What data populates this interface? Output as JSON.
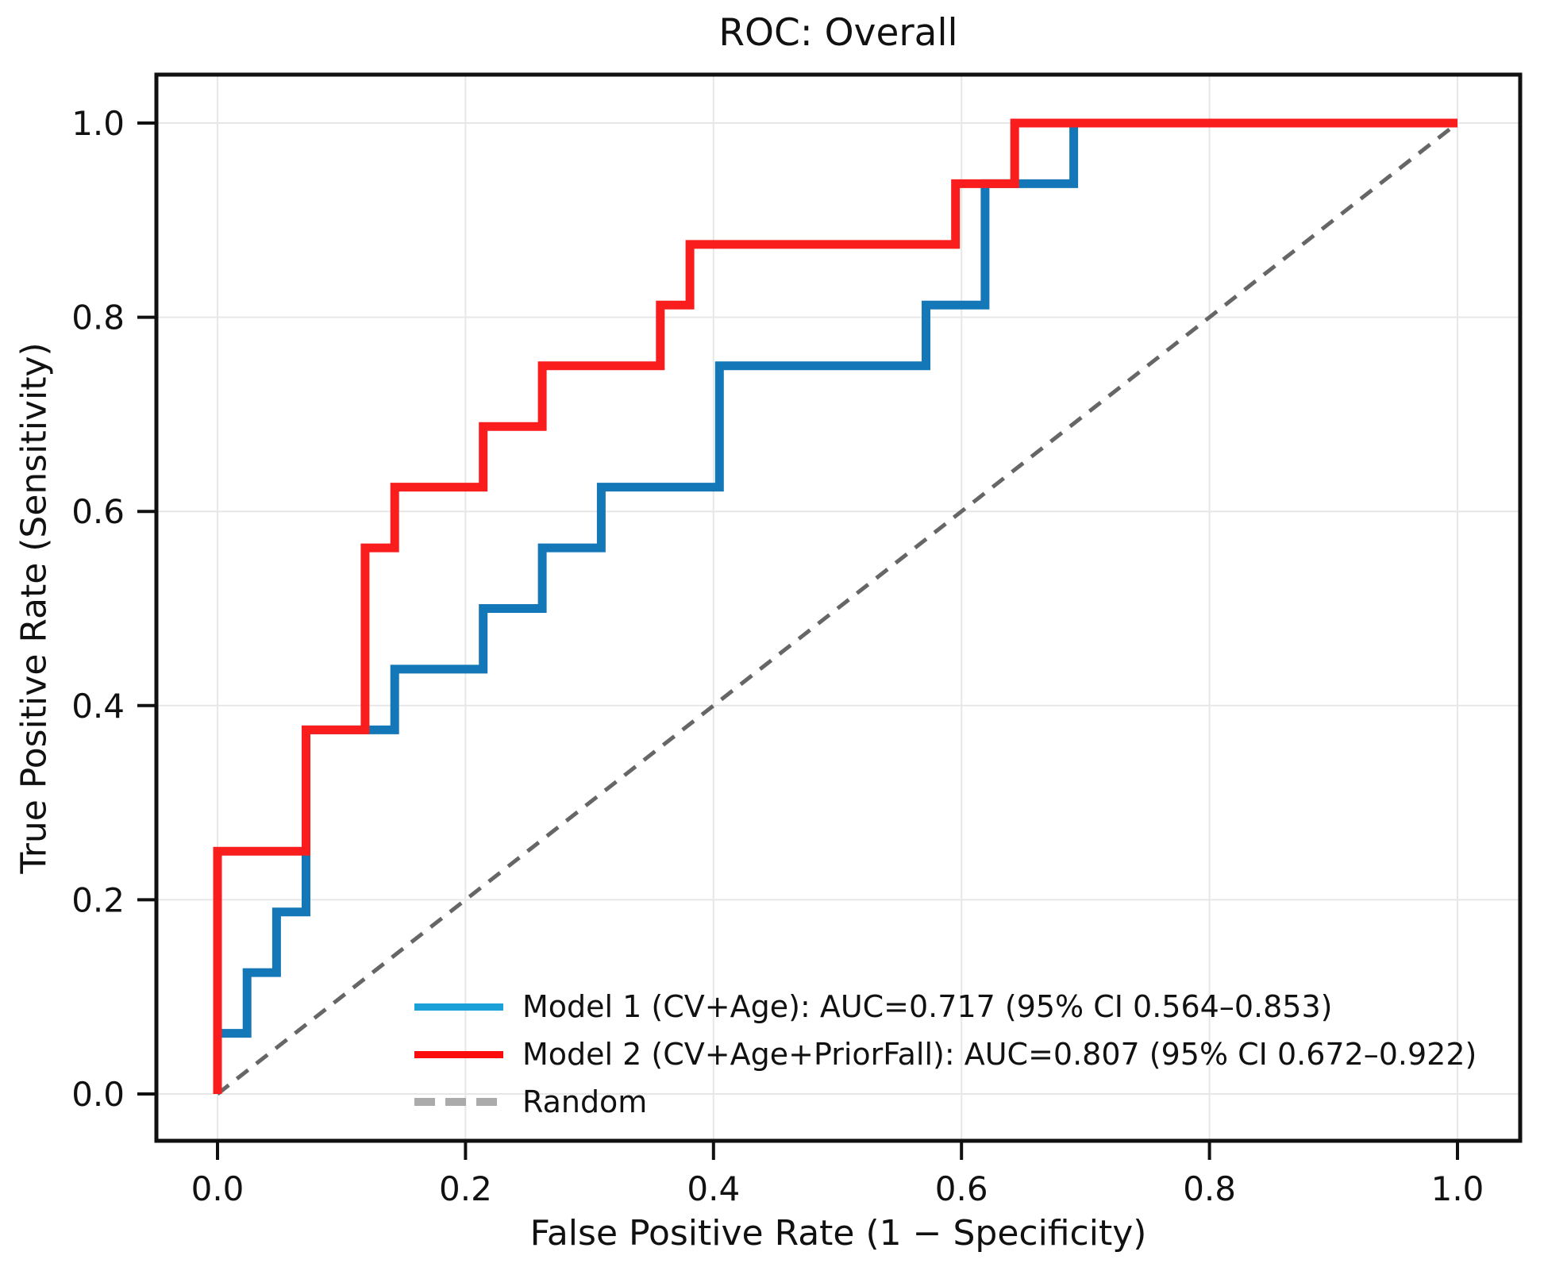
{
  "figure": {
    "background": "#ffffff",
    "text_color": "#111111",
    "grid_color": "#e7e7e7",
    "spine_color": "#111111"
  },
  "chart_data": {
    "type": "line",
    "subtype": "roc_step_curves",
    "title": "ROC: Overall",
    "xlabel": "False Positive Rate (1 − Specificity)",
    "ylabel": "True Positive Rate (Sensitivity)",
    "xlim": [
      0,
      1
    ],
    "ylim": [
      0,
      1
    ],
    "axis_margin_fraction": 0.045,
    "grid": true,
    "legend_position": "lower center, inside axes, no frame",
    "x_ticks": [
      0.0,
      0.2,
      0.4,
      0.6,
      0.8,
      1.0
    ],
    "x_tick_labels": [
      "0.0",
      "0.2",
      "0.4",
      "0.6",
      "0.8",
      "1.0"
    ],
    "y_ticks": [
      0.0,
      0.2,
      0.4,
      0.6,
      0.8,
      1.0
    ],
    "y_tick_labels": [
      "0.0",
      "0.2",
      "0.4",
      "0.6",
      "0.8",
      "1.0"
    ],
    "series": [
      {
        "name": "Model 1",
        "label": "Model 1 (CV+Age): AUC=0.717 (95% CI 0.564–0.853)",
        "auc": 0.717,
        "ci_95": "0.564–0.853",
        "color": "#1478b8",
        "legend_color": "#1ba1d7",
        "line_style": "solid",
        "line_width": 11,
        "z": 2,
        "points": [
          [
            0,
            0
          ],
          [
            0,
            0.0625
          ],
          [
            0.0238,
            0.0625
          ],
          [
            0.0238,
            0.125
          ],
          [
            0.0476,
            0.125
          ],
          [
            0.0476,
            0.1875
          ],
          [
            0.0714,
            0.1875
          ],
          [
            0.0714,
            0.375
          ],
          [
            0.1429,
            0.375
          ],
          [
            0.1429,
            0.4375
          ],
          [
            0.2143,
            0.4375
          ],
          [
            0.2143,
            0.5
          ],
          [
            0.2619,
            0.5
          ],
          [
            0.2619,
            0.5625
          ],
          [
            0.3095,
            0.5625
          ],
          [
            0.3095,
            0.625
          ],
          [
            0.4048,
            0.625
          ],
          [
            0.4048,
            0.75
          ],
          [
            0.5714,
            0.75
          ],
          [
            0.5714,
            0.8125
          ],
          [
            0.619,
            0.8125
          ],
          [
            0.619,
            0.9375
          ],
          [
            0.6905,
            0.9375
          ],
          [
            0.6905,
            1
          ],
          [
            1,
            1
          ]
        ]
      },
      {
        "name": "Model 2",
        "label": "Model 2 (CV+Age+PriorFall): AUC=0.807 (95% CI 0.672–0.922)",
        "auc": 0.807,
        "ci_95": "0.672–0.922",
        "color": "#f91d1d",
        "legend_color": "#fb0d0d",
        "line_style": "solid",
        "line_width": 11,
        "z": 3,
        "points": [
          [
            0,
            0
          ],
          [
            0,
            0.25
          ],
          [
            0.0714,
            0.25
          ],
          [
            0.0714,
            0.375
          ],
          [
            0.119,
            0.375
          ],
          [
            0.119,
            0.5625
          ],
          [
            0.1429,
            0.5625
          ],
          [
            0.1429,
            0.625
          ],
          [
            0.2143,
            0.625
          ],
          [
            0.2143,
            0.6875
          ],
          [
            0.2619,
            0.6875
          ],
          [
            0.2619,
            0.75
          ],
          [
            0.3571,
            0.75
          ],
          [
            0.3571,
            0.8125
          ],
          [
            0.381,
            0.8125
          ],
          [
            0.381,
            0.875
          ],
          [
            0.5952,
            0.875
          ],
          [
            0.5952,
            0.9375
          ],
          [
            0.6429,
            0.9375
          ],
          [
            0.6429,
            1
          ],
          [
            1,
            1
          ]
        ]
      },
      {
        "name": "Random",
        "label": "Random",
        "color": "#666666",
        "legend_color": "#ababab",
        "line_style": "dashed",
        "dash_pattern": "18 13",
        "line_width": 5,
        "z": 1,
        "points": [
          [
            0,
            0
          ],
          [
            1,
            1
          ]
        ]
      }
    ]
  }
}
